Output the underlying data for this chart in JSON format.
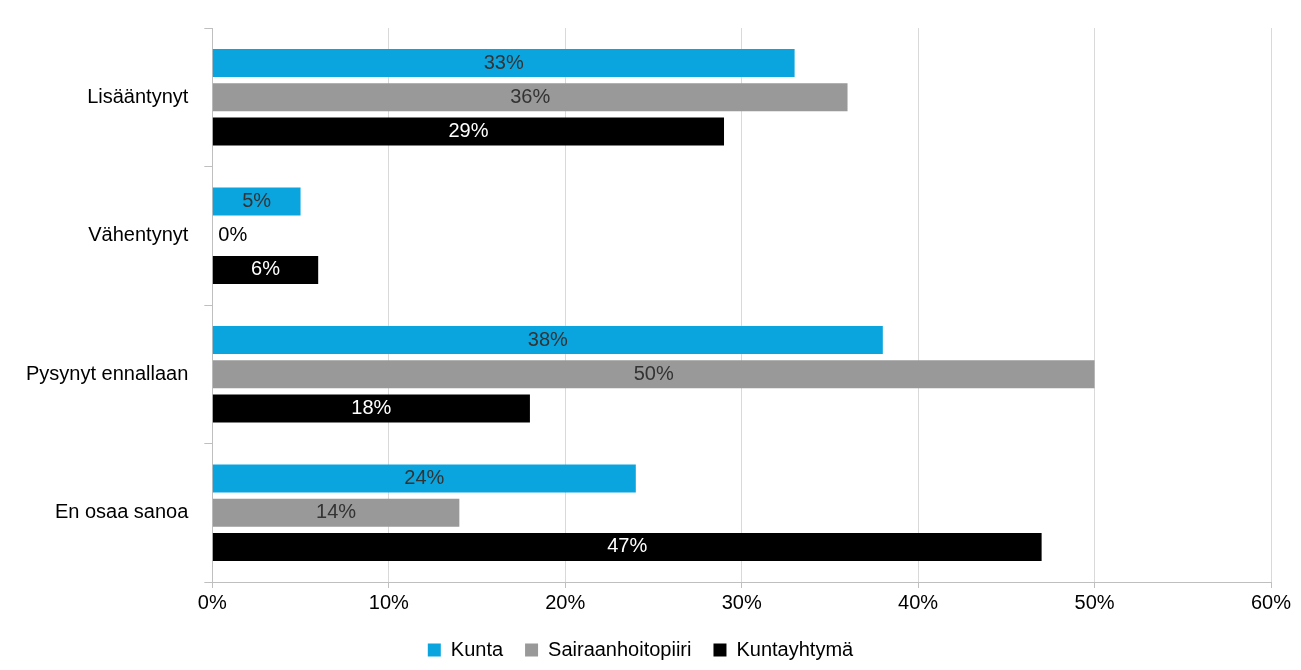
{
  "chart_data": {
    "type": "bar",
    "orientation": "horizontal",
    "categories": [
      "Lisääntynyt",
      "Vähentynyt",
      "Pysynyt ennallaan",
      "En osaa sanoa"
    ],
    "series": [
      {
        "name": "Kunta",
        "color": "#0aa5df",
        "values": [
          33,
          5,
          38,
          24
        ],
        "value_labels": [
          "33%",
          "5%",
          "38%",
          "24%"
        ]
      },
      {
        "name": "Sairaanhoitopiiri",
        "color": "#999999",
        "values": [
          36,
          0,
          50,
          14
        ],
        "value_labels": [
          "36%",
          "0%",
          "50%",
          "14%"
        ]
      },
      {
        "name": "Kuntayhtymä",
        "color": "#000000",
        "values": [
          29,
          6,
          18,
          47
        ],
        "value_labels": [
          "29%",
          "6%",
          "18%",
          "47%"
        ]
      }
    ],
    "xlim": [
      0,
      60
    ],
    "xticks": [
      {
        "value": 0,
        "label": "0%"
      },
      {
        "value": 10,
        "label": "10%"
      },
      {
        "value": 20,
        "label": "20%"
      },
      {
        "value": 30,
        "label": "30%"
      },
      {
        "value": 40,
        "label": "40%"
      },
      {
        "value": 50,
        "label": "50%"
      },
      {
        "value": 60,
        "label": "60%"
      }
    ],
    "grid": "x",
    "legend": "bottom"
  }
}
